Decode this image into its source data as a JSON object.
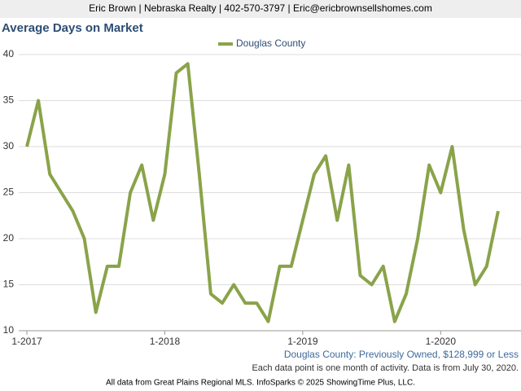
{
  "header": "Eric Brown | Nebraska Realty | 402-570-3797 | Eric@ericbrownsellshomes.com",
  "chart_data": {
    "type": "line",
    "title": "Average Days on Market",
    "categories": [
      "1-2017",
      null,
      null,
      null,
      null,
      null,
      null,
      null,
      null,
      null,
      null,
      null,
      "1-2018",
      null,
      null,
      null,
      null,
      null,
      null,
      null,
      null,
      null,
      null,
      null,
      "1-2019",
      null,
      null,
      null,
      null,
      null,
      null,
      null,
      null,
      null,
      null,
      null,
      "1-2020",
      null,
      null,
      null,
      null,
      null
    ],
    "series": [
      {
        "name": "Douglas County",
        "color": "#8aa34a",
        "values": [
          30,
          35,
          27,
          25,
          23,
          20,
          12,
          17,
          17,
          25,
          28,
          22,
          27,
          38,
          39,
          27,
          14,
          13,
          15,
          13,
          13,
          11,
          17,
          17,
          22,
          27,
          29,
          22,
          28,
          16,
          15,
          17,
          11,
          14,
          20,
          28,
          25,
          30,
          21,
          15,
          17,
          23
        ]
      }
    ],
    "ylim": [
      10,
      40
    ],
    "yticks": [
      10,
      15,
      20,
      25,
      30,
      35,
      40
    ],
    "grid": true,
    "legend": "top"
  },
  "footer": {
    "subtitle": "Douglas County: Previously Owned, $128,999 or Less",
    "note": "Each data point is one month of activity. Data is from July 30, 2020.",
    "credit": "All data from Great Plains Regional MLS. InfoSparks © 2025 ShowingTime Plus, LLC."
  }
}
